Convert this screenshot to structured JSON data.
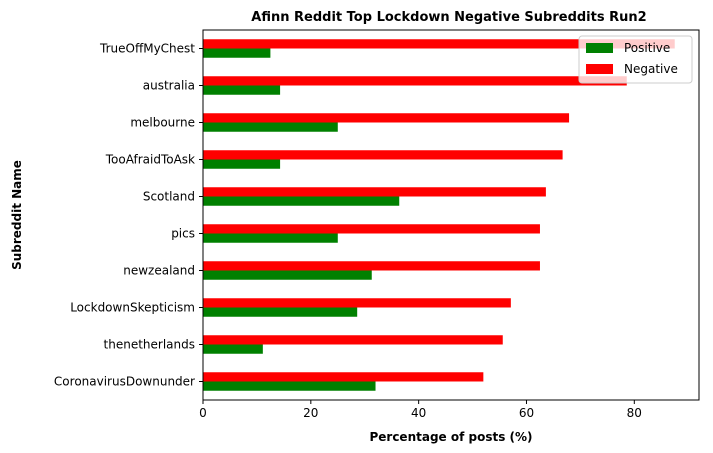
{
  "chart_data": {
    "type": "bar",
    "orientation": "horizontal",
    "title": "Afinn Reddit Top Lockdown Negative Subreddits Run2",
    "xlabel": "Percentage of posts (%)",
    "ylabel": "Subreddit Name",
    "xlim": [
      0,
      92
    ],
    "xticks": [
      0,
      20,
      40,
      60,
      80
    ],
    "grid": false,
    "legend_position": "top-right",
    "categories": [
      "CoronavirusDownunder",
      "thenetherlands",
      "LockdownSkepticism",
      "newzealand",
      "pics",
      "Scotland",
      "TooAfraidToAsk",
      "melbourne",
      "australia",
      "TrueOffMyChest"
    ],
    "series": [
      {
        "name": "Positive",
        "color": "#008000",
        "values": [
          32.0,
          11.1,
          28.6,
          31.3,
          25.0,
          36.4,
          14.3,
          25.0,
          14.3,
          12.5
        ]
      },
      {
        "name": "Negative",
        "color": "#ff0000",
        "values": [
          52.0,
          55.6,
          57.1,
          62.5,
          62.5,
          63.6,
          66.7,
          67.9,
          78.6,
          87.5
        ]
      }
    ]
  }
}
